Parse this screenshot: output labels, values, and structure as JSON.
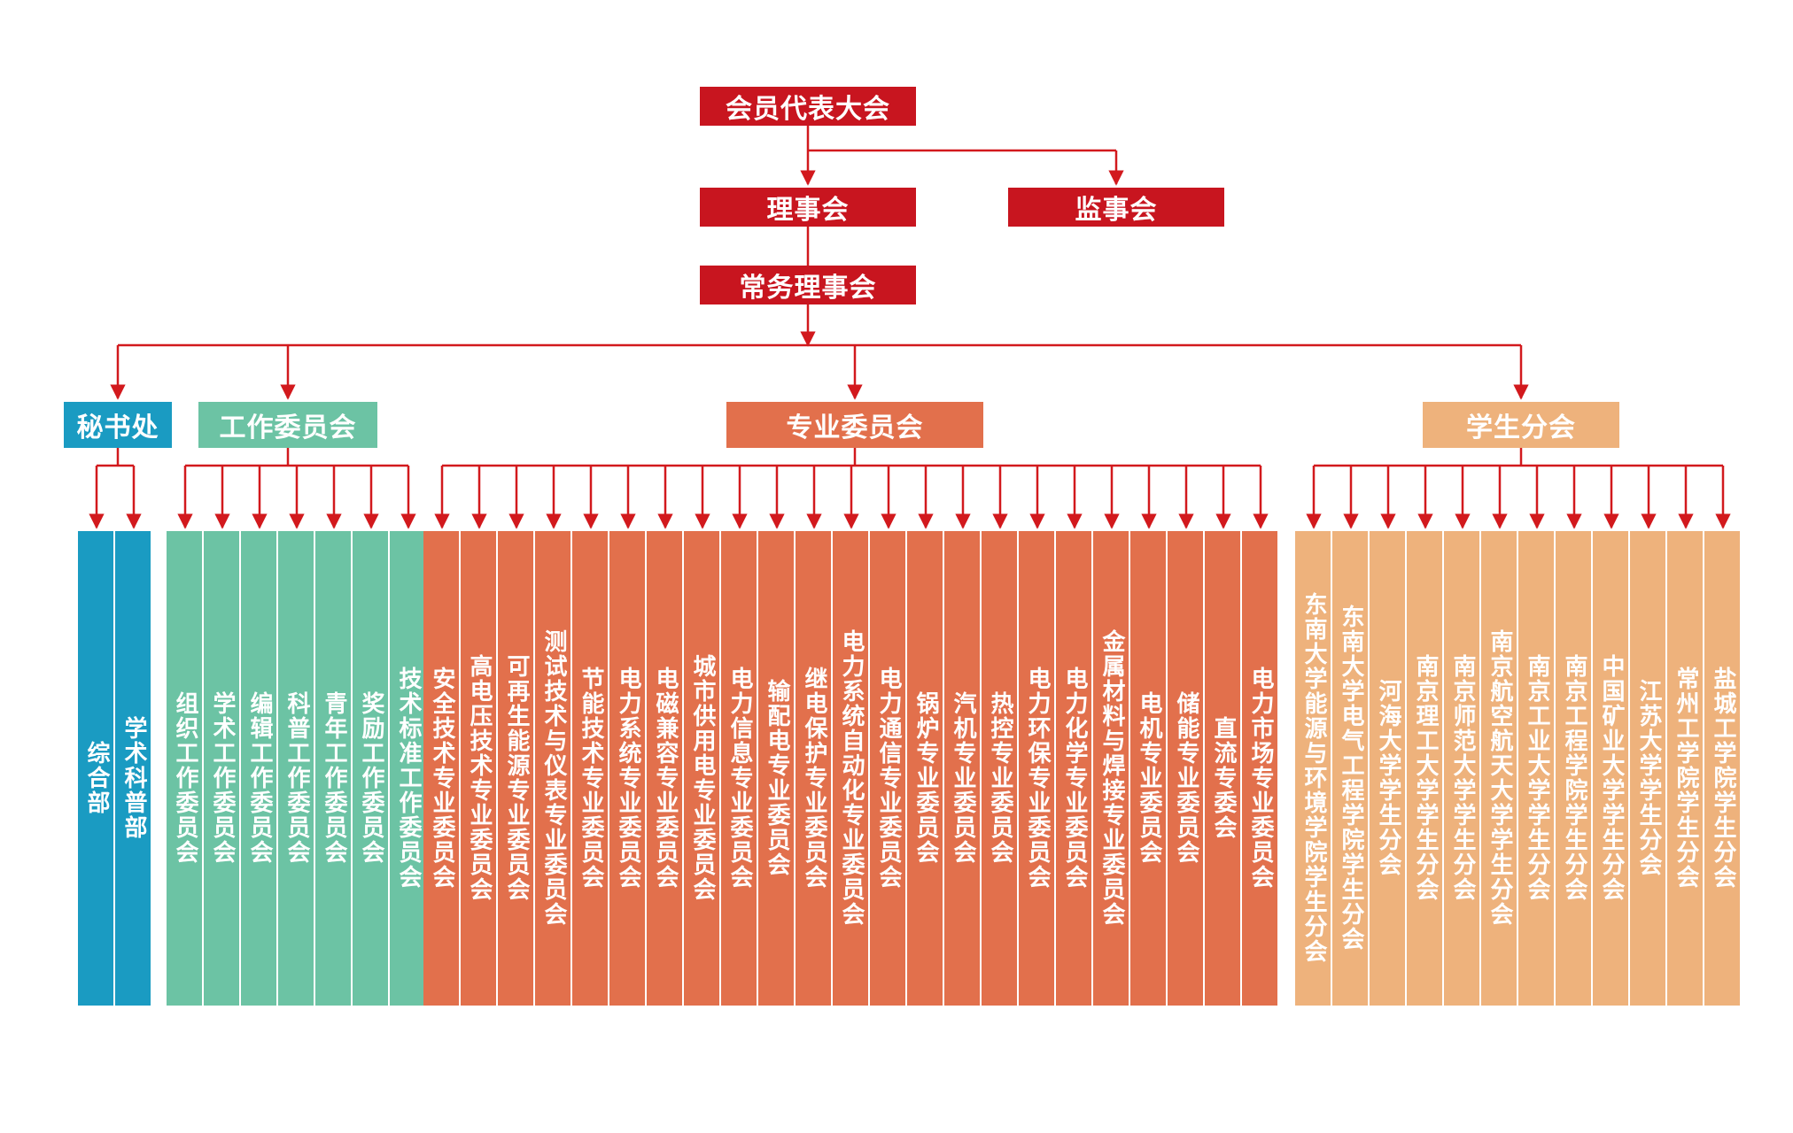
{
  "colors": {
    "line": "#d2191d",
    "top": "#c8151f",
    "secretariat": "#1a9bc2",
    "work": "#6cc3a4",
    "professional": "#e2704c",
    "student": "#eeb27c"
  },
  "top": {
    "assembly": "会员代表大会",
    "council": "理事会",
    "supervisors": "监事会",
    "standing": "常务理事会"
  },
  "groups": {
    "secretariat": {
      "title": "秘书处",
      "items": [
        "综合部",
        "学术科普部"
      ]
    },
    "work": {
      "title": "工作委员会",
      "items": [
        "组织工作委员会",
        "学术工作委员会",
        "编辑工作委员会",
        "科普工作委员会",
        "青年工作委员会",
        "奖励工作委员会",
        "技术标准工作委员会"
      ]
    },
    "professional": {
      "title": "专业委员会",
      "items": [
        "安全技术专业委员会",
        "高电压技术专业委员会",
        "可再生能源专业委员会",
        "测试技术与仪表专业委员会",
        "节能技术专业委员会",
        "电力系统专业委员会",
        "电磁兼容专业委员会",
        "城市供用电专业委员会",
        "电力信息专业委员会",
        "输配电专业委员会",
        "继电保护专业委员会",
        "电力系统自动化专业委员会",
        "电力通信专业委员会",
        "锅炉专业委员会",
        "汽机专业委员会",
        "热控专业委员会",
        "电力环保专业委员会",
        "电力化学专业委员会",
        "金属材料与焊接专业委员会",
        "电机专业委员会",
        "储能专业委员会",
        "直流专委会",
        "电力市场专业委员会"
      ]
    },
    "student": {
      "title": "学生分会",
      "items": [
        "东南大学能源与环境学院学生分会",
        "东南大学电气工程学院学生分会",
        "河海大学学生分会",
        "南京理工大学学生分会",
        "南京师范大学学生分会",
        "南京航空航天大学学生分会",
        "南京工业大学学生分会",
        "南京工程学院学生分会",
        "中国矿业大学学生分会",
        "江苏大学学生分会",
        "常州工学院学生分会",
        "盐城工学院学生分会"
      ]
    }
  }
}
